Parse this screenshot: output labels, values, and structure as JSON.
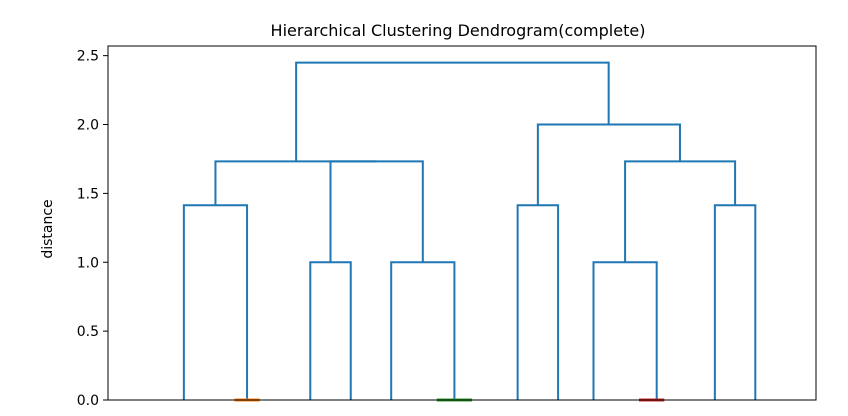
{
  "chart_data": {
    "type": "dendrogram",
    "title": "Hierarchical Clustering Dendrogram(complete)",
    "xlabel": "",
    "ylabel": "distance",
    "ylim": [
      0,
      2.57
    ],
    "xlim": [
      0,
      140
    ],
    "yticks": [
      0.0,
      0.5,
      1.0,
      1.5,
      2.0,
      2.5
    ],
    "ytick_labels": [
      "0.0",
      "0.5",
      "1.0",
      "1.5",
      "2.0",
      "2.5"
    ],
    "grid": false,
    "colors": {
      "link": "#1f77b4",
      "orange": "#ff7f0e",
      "green": "#2ca02c",
      "red": "#d62728"
    },
    "links": [
      {
        "x": [
          15,
          15,
          27.5,
          27.5
        ],
        "y": [
          0,
          1.414,
          1.414,
          0
        ],
        "color": "link"
      },
      {
        "x": [
          25,
          25,
          30,
          30
        ],
        "y": [
          0,
          0,
          0,
          0
        ],
        "color": "orange"
      },
      {
        "x": [
          40,
          40,
          48,
          48
        ],
        "y": [
          0,
          1.0,
          1.0,
          0
        ],
        "color": "link"
      },
      {
        "x": [
          56,
          56,
          68.5,
          68.5
        ],
        "y": [
          0,
          1.0,
          1.0,
          0
        ],
        "color": "link"
      },
      {
        "x": [
          65,
          65,
          72,
          72
        ],
        "y": [
          0,
          0,
          0,
          0
        ],
        "color": "green"
      },
      {
        "x": [
          44,
          44,
          62.25,
          62.25
        ],
        "y": [
          1.0,
          1.732,
          1.732,
          1.0
        ],
        "color": "link"
      },
      {
        "x": [
          21.25,
          21.25,
          53.1,
          53.1
        ],
        "y": [
          1.414,
          1.732,
          1.732,
          1.732
        ],
        "color": "link"
      },
      {
        "x": [
          81,
          81,
          89,
          89
        ],
        "y": [
          0,
          1.414,
          1.414,
          0
        ],
        "color": "link"
      },
      {
        "x": [
          96,
          96,
          108.5,
          108.5
        ],
        "y": [
          0,
          1.0,
          1.0,
          0
        ],
        "color": "link"
      },
      {
        "x": [
          105,
          105,
          110,
          110
        ],
        "y": [
          0,
          0,
          0,
          0
        ],
        "color": "red"
      },
      {
        "x": [
          120,
          120,
          128,
          128
        ],
        "y": [
          0,
          1.414,
          1.414,
          0
        ],
        "color": "link"
      },
      {
        "x": [
          102.25,
          102.25,
          124,
          124
        ],
        "y": [
          1.0,
          1.732,
          1.732,
          1.414
        ],
        "color": "link"
      },
      {
        "x": [
          85,
          85,
          113.1,
          113.1
        ],
        "y": [
          1.414,
          2.0,
          2.0,
          1.732
        ],
        "color": "link"
      },
      {
        "x": [
          37.2,
          37.2,
          99,
          99
        ],
        "y": [
          1.732,
          2.449,
          2.449,
          2.0
        ],
        "color": "link"
      }
    ]
  }
}
